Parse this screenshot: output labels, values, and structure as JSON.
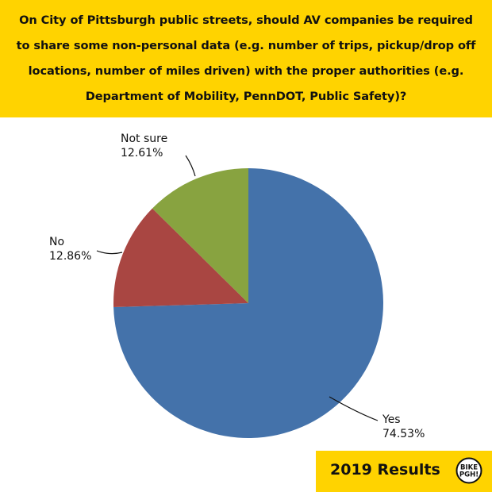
{
  "question": "On City of Pittsburgh public streets, should AV companies be required to share some non-personal data (e.g. number of trips, pickup/drop off locations, number of miles driven) with the proper authorities (e.g. Department of Mobility, PennDOT, Public Safety)?",
  "chart_data": {
    "type": "pie",
    "slices": [
      {
        "label": "Yes",
        "value": 74.53,
        "display": "74.53%",
        "color": "#4472aa"
      },
      {
        "label": "No",
        "value": 12.86,
        "display": "12.86%",
        "color": "#a94642"
      },
      {
        "label": "Not sure",
        "value": 12.61,
        "display": "12.61%",
        "color": "#88a340"
      }
    ],
    "start": "12 o'clock",
    "direction": "clockwise",
    "legend": "none",
    "labels": "outside with leader lines"
  },
  "footer": {
    "results_label": "2019 Results",
    "logo": {
      "name": "bike-pgh-logo",
      "line1": "BIKE",
      "line2": "PGH!"
    }
  },
  "colors": {
    "banner": "#ffd300",
    "text": "#111111"
  }
}
